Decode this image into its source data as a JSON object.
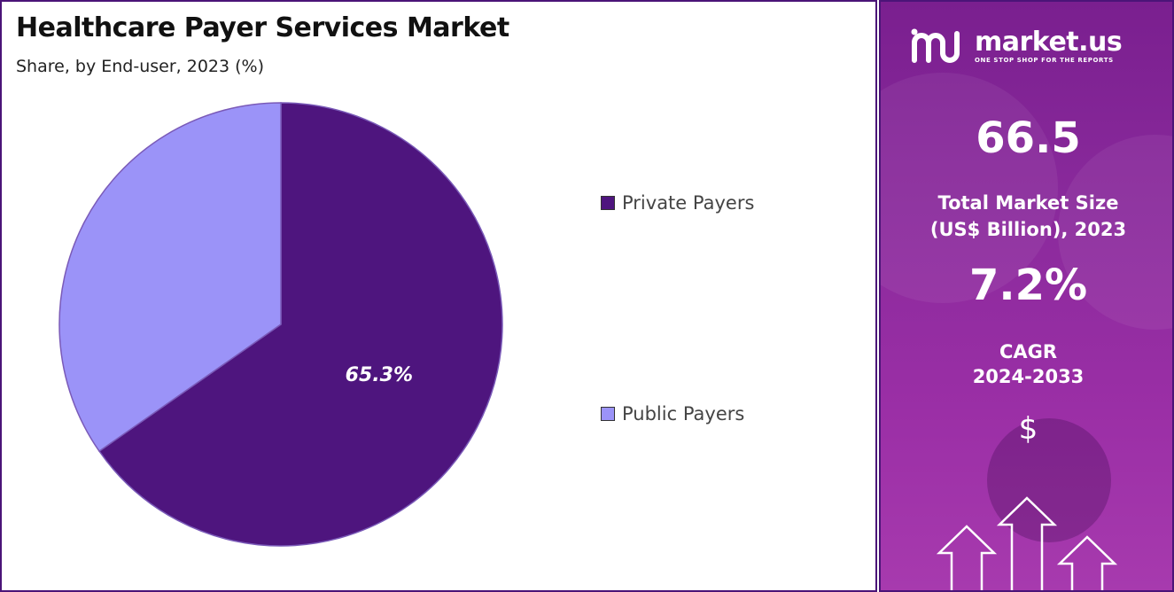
{
  "header": {
    "title": "Healthcare Payer Services Market",
    "subtitle": "Share, by End-user, 2023 (%)"
  },
  "chart_data": {
    "type": "pie",
    "title": "Healthcare Payer Services Market",
    "subtitle": "Share, by End-user, 2023 (%)",
    "categories": [
      "Private Payers",
      "Public Payers"
    ],
    "values": [
      65.3,
      34.7
    ],
    "colors": [
      "#4e157e",
      "#9b93f8"
    ],
    "data_labels": [
      "65.3%",
      ""
    ],
    "legend": {
      "placement": "right",
      "entries": [
        "Private Payers",
        "Public Payers"
      ]
    }
  },
  "sidebar": {
    "brand": {
      "name": "market.us",
      "tagline": "ONE STOP SHOP FOR THE REPORTS"
    },
    "market_size": {
      "value": "66.5",
      "label_line1": "Total Market Size",
      "label_line2": "(US$ Billion), 2023"
    },
    "cagr": {
      "value": "7.2%",
      "label_line1": "CAGR",
      "label_line2": "2024-2033"
    },
    "currency_symbol": "$",
    "icons": [
      "market-us-logo-icon",
      "dollar-icon",
      "growth-arrows-icon"
    ],
    "accent_color": "#8a2a9c"
  }
}
